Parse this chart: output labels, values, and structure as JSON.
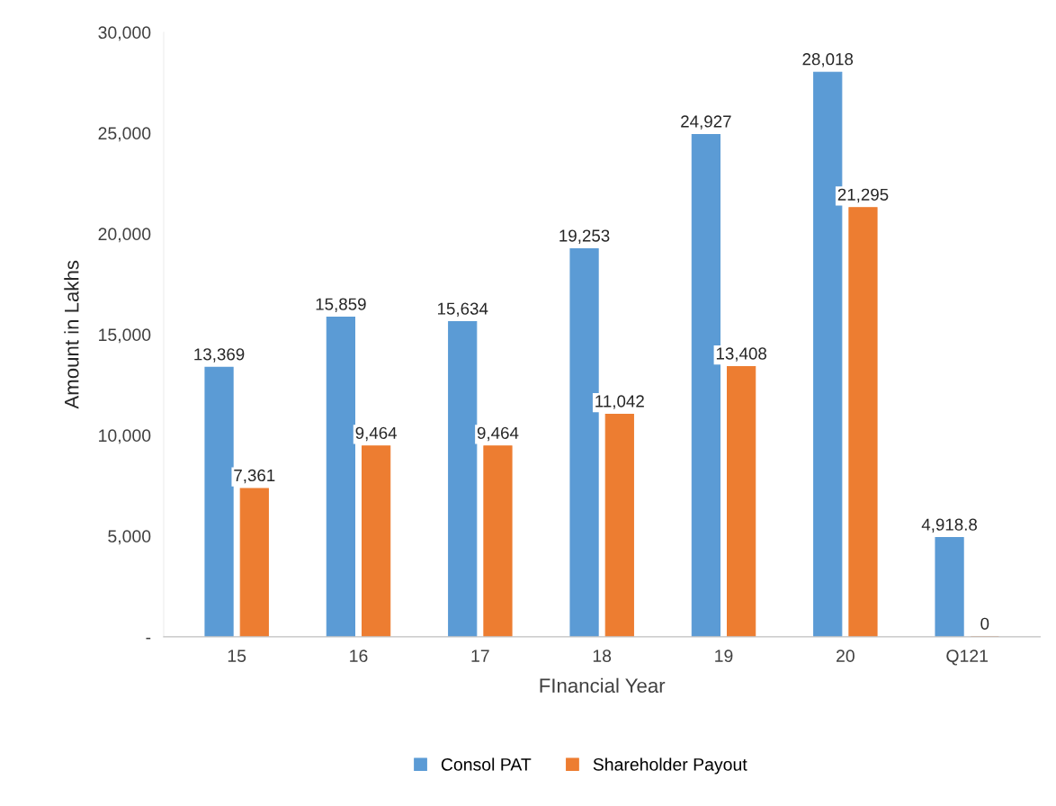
{
  "chart_data": {
    "type": "bar",
    "xlabel": "FInancial Year",
    "ylabel": "Amount in Lakhs",
    "categories": [
      "15",
      "16",
      "17",
      "18",
      "19",
      "20",
      "Q121"
    ],
    "series": [
      {
        "name": "Consol PAT",
        "color": "#5b9bd5",
        "values": [
          13369,
          15859,
          15634,
          19253,
          24927,
          28018,
          4918.8
        ],
        "value_labels": [
          "13,369",
          "15,859",
          "15,634",
          "19,253",
          "24,927",
          "28,018",
          "4,918.8"
        ]
      },
      {
        "name": "Shareholder Payout",
        "color": "#ed7d31",
        "values": [
          7361,
          9464,
          9464,
          11042,
          13408,
          21295,
          0
        ],
        "value_labels": [
          "7,361",
          "9,464",
          "9,464",
          "11,042",
          "13,408",
          "21,295",
          "0"
        ]
      }
    ],
    "ylim": [
      0,
      30000
    ],
    "yticks": [
      {
        "value": 0,
        "label": "-"
      },
      {
        "value": 5000,
        "label": "5,000"
      },
      {
        "value": 10000,
        "label": "10,000"
      },
      {
        "value": 15000,
        "label": "15,000"
      },
      {
        "value": 20000,
        "label": "20,000"
      },
      {
        "value": 25000,
        "label": "25,000"
      },
      {
        "value": 30000,
        "label": "30,000"
      }
    ],
    "legend": "bottom"
  }
}
